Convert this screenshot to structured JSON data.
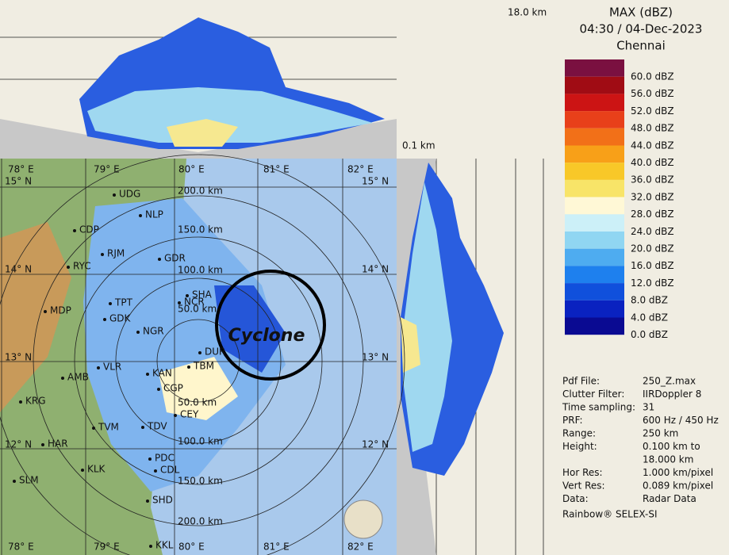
{
  "header": {
    "product": "MAX (dBZ)",
    "time": "04:30 / 04-Dec-2023",
    "station": "Chennai"
  },
  "top_height": "18.0 km",
  "bottom_height": "0.1 km",
  "legend": [
    {
      "label": "60.0 dBZ",
      "color": "#7a1040"
    },
    {
      "label": "56.0 dBZ",
      "color": "#a00c14"
    },
    {
      "label": "52.0 dBZ",
      "color": "#cc1414"
    },
    {
      "label": "48.0 dBZ",
      "color": "#e8401a"
    },
    {
      "label": "44.0 dBZ",
      "color": "#f27018"
    },
    {
      "label": "40.0 dBZ",
      "color": "#f8a018"
    },
    {
      "label": "36.0 dBZ",
      "color": "#f8c828"
    },
    {
      "label": "32.0 dBZ",
      "color": "#f8e468"
    },
    {
      "label": "28.0 dBZ",
      "color": "#fff8d6"
    },
    {
      "label": "24.0 dBZ",
      "color": "#ccf0f8"
    },
    {
      "label": "20.0 dBZ",
      "color": "#90d6f2"
    },
    {
      "label": "16.0 dBZ",
      "color": "#4eacf0"
    },
    {
      "label": "12.0 dBZ",
      "color": "#1e80ee"
    },
    {
      "label": "8.0 dBZ",
      "color": "#1050dc"
    },
    {
      "label": "4.0 dBZ",
      "color": "#0a22c0"
    },
    {
      "label": "0.0 dBZ",
      "color": "#0a0a92"
    }
  ],
  "info": [
    [
      "Pdf File:",
      "250_Z.max"
    ],
    [
      "Clutter Filter:",
      "IIRDoppler 8"
    ],
    [
      "Time sampling:",
      "31"
    ],
    [
      "PRF:",
      "600 Hz / 450 Hz"
    ],
    [
      "Range:",
      "250 km"
    ],
    [
      "Height:",
      "0.100 km to"
    ],
    [
      "",
      "18.000 km"
    ],
    [
      "Hor Res:",
      "1.000 km/pixel"
    ],
    [
      "Vert Res:",
      "0.089 km/pixel"
    ],
    [
      "Data:",
      "Radar Data"
    ]
  ],
  "credit": "Rainbow® SELEX-SI",
  "map": {
    "annotation": "Cyclone",
    "longitudes": [
      "78° E",
      "79° E",
      "80° E",
      "81° E",
      "82° E"
    ],
    "latitudes": [
      "15° N",
      "14° N",
      "13° N",
      "12° N"
    ],
    "ranges_north": [
      "200.0 km",
      "150.0 km",
      "100.0 km",
      "50.0 km"
    ],
    "ranges_south": [
      "50.0 km",
      "100.0 km",
      "150.0 km",
      "200.0 km"
    ],
    "cities": [
      "UDG",
      "NLP",
      "CDP",
      "RJM",
      "GDR",
      "RYC",
      "TPT",
      "SHA",
      "NCR",
      "MDP",
      "GDK",
      "NGR",
      "DUR",
      "VLR",
      "KAN",
      "TBM",
      "AMB",
      "CGP",
      "KRG",
      "CEY",
      "TVM",
      "TDV",
      "HAR",
      "PDC",
      "KLK",
      "CDL",
      "SLM",
      "SHD",
      "KKL"
    ]
  }
}
